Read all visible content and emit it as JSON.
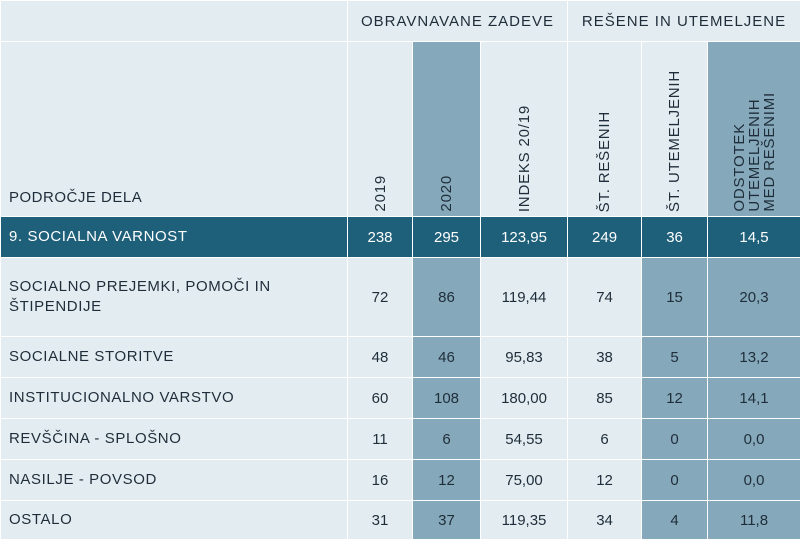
{
  "header": {
    "group_cases": "OBRAVNAVANE ZADEVE",
    "group_resolved": "REŠENE IN UTEMELJENE",
    "area_label": "PODROČJE DELA",
    "columns": [
      "2019",
      "2020",
      "INDEKS 20/19",
      "ŠT. REŠENIH",
      "ŠT. UTEMELJENIH",
      "ODSTOTEK\nUTEMELJENIH\nMED REŠENIMI"
    ]
  },
  "rows": [
    {
      "name": "9. SOCIALNA VARNOST",
      "y2019": "238",
      "y2020": "295",
      "index": "123,95",
      "resolved": "249",
      "justified": "36",
      "pct": "14,5"
    },
    {
      "name": "SOCIALNO PREJEMKI, POMOČI IN ŠTIPENDIJE",
      "y2019": "72",
      "y2020": "86",
      "index": "119,44",
      "resolved": "74",
      "justified": "15",
      "pct": "20,3"
    },
    {
      "name": "SOCIALNE STORITVE",
      "y2019": "48",
      "y2020": "46",
      "index": "95,83",
      "resolved": "38",
      "justified": "5",
      "pct": "13,2"
    },
    {
      "name": "INSTITUCIONALNO VARSTVO",
      "y2019": "60",
      "y2020": "108",
      "index": "180,00",
      "resolved": "85",
      "justified": "12",
      "pct": "14,1"
    },
    {
      "name": "REVŠČINA - SPLOŠNO",
      "y2019": "11",
      "y2020": "6",
      "index": "54,55",
      "resolved": "6",
      "justified": "0",
      "pct": "0,0"
    },
    {
      "name": "NASILJE - POVSOD",
      "y2019": "16",
      "y2020": "12",
      "index": "75,00",
      "resolved": "12",
      "justified": "0",
      "pct": "0,0"
    },
    {
      "name": "OSTALO",
      "y2019": "31",
      "y2020": "37",
      "index": "119,35",
      "resolved": "34",
      "justified": "4",
      "pct": "11,8"
    }
  ],
  "colors": {
    "light_cell": "#e3edf1",
    "highlight_column": "#85a9ba",
    "total_row": "#1e5f7a"
  }
}
